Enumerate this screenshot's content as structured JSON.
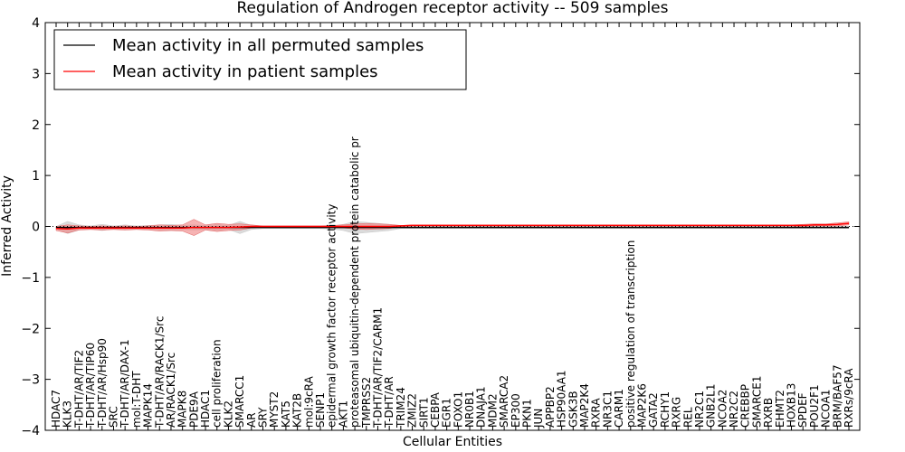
{
  "chart_data": {
    "type": "line",
    "title": "Regulation of Androgen receptor activity -- 509 samples",
    "xlabel": "Cellular Entities",
    "ylabel": "Inferred Activity",
    "ylim": [
      -4,
      4
    ],
    "yticks": [
      4,
      3,
      2,
      1,
      0,
      -1,
      -2,
      -3,
      -4
    ],
    "ytick_labels": [
      "4",
      "3",
      "2",
      "1",
      "0",
      "−1",
      "−2",
      "−3",
      "−4"
    ],
    "grid": false,
    "legend_position": "top-left",
    "categories": [
      "HDAC7",
      "KLK3",
      "T-DHT/AR/TIF2",
      "T-DHT/AR/TIP60",
      "T-DHT/AR/Hsp90",
      "SRC",
      "T-DHT/AR/DAX-1",
      "mol:T-DHT",
      "MAPK14",
      "T-DHT/AR/RACK1/Src",
      "AR/RACK1/Src",
      "MAPK8",
      "PDE9A",
      "HDAC1",
      "cell proliferation",
      "KLK2",
      "SMARCC1",
      "AR",
      "SRY",
      "MYST2",
      "KAT5",
      "KAT2B",
      "mol:9cRA",
      "SENP1",
      "epidermal growth factor receptor activity",
      "AKT1",
      "proteasomal ubiquitin-dependent protein catabolic pr",
      "TMPRSS2",
      "T-DHT/AR/TIF2/CARM1",
      "T-DHT/AR",
      "TRIM24",
      "ZMIZ2",
      "SIRT1",
      "CEBPA",
      "EGR1",
      "FOXO1",
      "NR0B1",
      "DNAJA1",
      "MDM2",
      "SMARCA2",
      "EP300",
      "PKN1",
      "JUN",
      "APPBP2",
      "HSP90AA1",
      "GSK3B",
      "MAP2K4",
      "RXRA",
      "NR3C1",
      "CARM1",
      "positive regulation of transcription",
      "MAP2K6",
      "GATA2",
      "RCHY1",
      "RXRG",
      "REL",
      "NR2C1",
      "GNB2L1",
      "NCOA2",
      "NR2C2",
      "CREBBP",
      "SMARCE1",
      "RXRB",
      "EHMT2",
      "HOXB13",
      "SPDEF",
      "POU2F1",
      "NCOA1",
      "BRM/BAF57",
      "RXRs/9cRA"
    ],
    "series": [
      {
        "name": "Mean activity in all permuted samples",
        "color": "#000000",
        "values": [
          -0.02,
          -0.02,
          -0.02,
          -0.02,
          -0.02,
          -0.02,
          -0.02,
          -0.02,
          -0.02,
          -0.02,
          -0.02,
          -0.02,
          -0.02,
          -0.02,
          -0.02,
          -0.02,
          -0.02,
          -0.02,
          -0.02,
          -0.02,
          -0.02,
          -0.02,
          -0.02,
          -0.02,
          -0.02,
          -0.02,
          -0.02,
          -0.02,
          -0.02,
          -0.02,
          -0.02,
          -0.02,
          -0.02,
          -0.02,
          -0.02,
          -0.02,
          -0.02,
          -0.02,
          -0.02,
          -0.02,
          -0.02,
          -0.02,
          -0.02,
          -0.02,
          -0.02,
          -0.02,
          -0.02,
          -0.02,
          -0.02,
          -0.02,
          -0.02,
          -0.02,
          -0.02,
          -0.02,
          -0.02,
          -0.02,
          -0.02,
          -0.02,
          -0.02,
          -0.02,
          -0.02,
          -0.02,
          -0.02,
          -0.02,
          -0.02,
          -0.02,
          -0.02,
          -0.02,
          -0.02,
          -0.02
        ],
        "band": [
          0.02,
          0.12,
          0.05,
          0.03,
          0.06,
          0.03,
          0.05,
          0.03,
          0.04,
          0.05,
          0.06,
          0.04,
          0.05,
          0.04,
          0.06,
          0.04,
          0.12,
          0.04,
          0.02,
          0.02,
          0.02,
          0.02,
          0.02,
          0.02,
          0.03,
          0.06,
          0.12,
          0.1,
          0.08,
          0.06,
          0.02,
          0.02,
          0.02,
          0.02,
          0.02,
          0.02,
          0.02,
          0.02,
          0.02,
          0.02,
          0.02,
          0.02,
          0.02,
          0.02,
          0.02,
          0.02,
          0.02,
          0.02,
          0.02,
          0.02,
          0.02,
          0.02,
          0.02,
          0.02,
          0.02,
          0.02,
          0.02,
          0.02,
          0.02,
          0.02,
          0.02,
          0.02,
          0.02,
          0.02,
          0.02,
          0.02,
          0.02,
          0.02,
          0.02,
          0.02
        ]
      },
      {
        "name": "Mean activity in patient samples",
        "color": "#ff0000",
        "values": [
          -0.04,
          -0.05,
          -0.03,
          -0.03,
          -0.03,
          -0.03,
          -0.03,
          -0.03,
          -0.03,
          -0.03,
          -0.03,
          -0.03,
          -0.02,
          -0.02,
          -0.02,
          -0.02,
          -0.01,
          0.0,
          0.0,
          0.0,
          0.0,
          0.0,
          0.0,
          0.0,
          0.0,
          0.0,
          0.0,
          0.0,
          0.0,
          0.0,
          0.01,
          0.02,
          0.02,
          0.02,
          0.02,
          0.02,
          0.02,
          0.02,
          0.02,
          0.02,
          0.02,
          0.02,
          0.02,
          0.02,
          0.02,
          0.02,
          0.02,
          0.02,
          0.02,
          0.02,
          0.02,
          0.02,
          0.02,
          0.02,
          0.02,
          0.02,
          0.02,
          0.02,
          0.02,
          0.02,
          0.02,
          0.02,
          0.02,
          0.02,
          0.02,
          0.02,
          0.03,
          0.03,
          0.04,
          0.06
        ],
        "band": [
          0.04,
          0.08,
          0.04,
          0.03,
          0.04,
          0.03,
          0.04,
          0.03,
          0.04,
          0.06,
          0.05,
          0.06,
          0.16,
          0.05,
          0.08,
          0.06,
          0.06,
          0.03,
          0.01,
          0.01,
          0.01,
          0.01,
          0.01,
          0.01,
          0.02,
          0.03,
          0.05,
          0.06,
          0.05,
          0.04,
          0.01,
          0.01,
          0.01,
          0.01,
          0.01,
          0.01,
          0.01,
          0.01,
          0.01,
          0.01,
          0.01,
          0.01,
          0.01,
          0.01,
          0.01,
          0.01,
          0.01,
          0.01,
          0.01,
          0.01,
          0.01,
          0.01,
          0.01,
          0.01,
          0.01,
          0.01,
          0.01,
          0.01,
          0.01,
          0.01,
          0.01,
          0.01,
          0.01,
          0.01,
          0.01,
          0.02,
          0.02,
          0.02,
          0.03,
          0.03
        ]
      }
    ],
    "reference_line": 0
  }
}
